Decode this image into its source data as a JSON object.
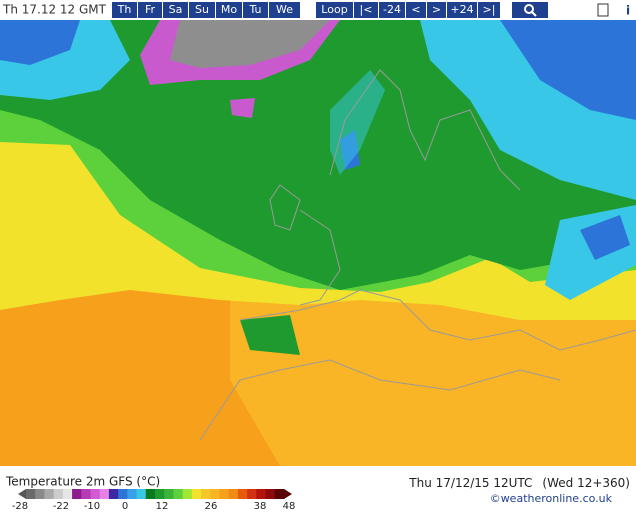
{
  "header": {
    "timestamp": "Th 17.12 12 GMT",
    "days": [
      "Th",
      "Fr",
      "Sa",
      "Su",
      "Mo",
      "Tu",
      "We"
    ],
    "controls": [
      "Loop",
      "|<",
      "-24",
      "<",
      ">",
      "+24",
      ">|"
    ],
    "info": "i"
  },
  "legend": {
    "title": "Temperature 2m GFS (°C)",
    "ticks": [
      -28,
      -22,
      -10,
      0,
      12,
      26,
      38,
      48
    ]
  },
  "footer": {
    "valid": "Thu 17/12/15 12UTC",
    "run": "(Wed 12+360)",
    "credit": "©weatheronline.co.uk"
  }
}
